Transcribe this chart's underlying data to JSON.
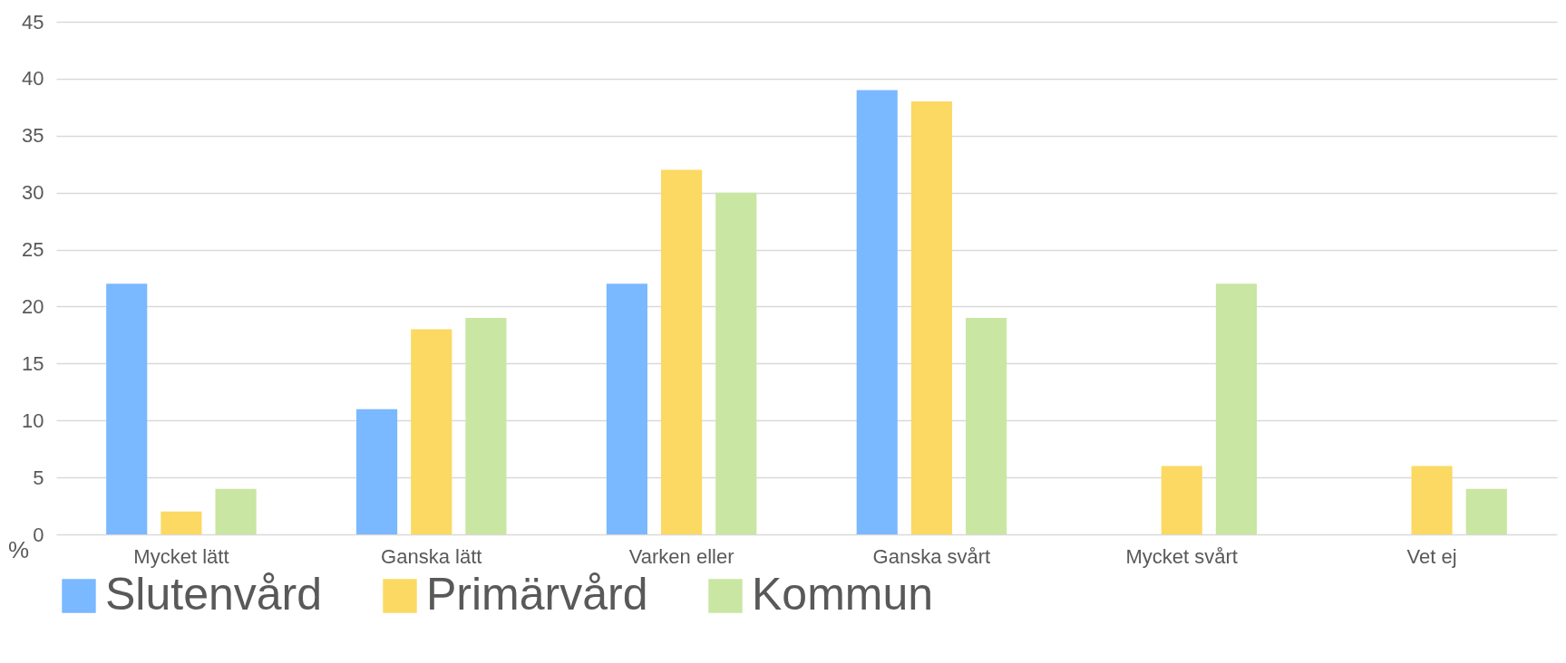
{
  "chart_data": {
    "type": "bar",
    "ylabel": "%",
    "categories": [
      "Mycket lätt",
      "Ganska lätt",
      "Varken eller",
      "Ganska svårt",
      "Mycket svårt",
      "Vet ej"
    ],
    "series": [
      {
        "name": "Slutenvård",
        "color": "#7ab8ff",
        "values": [
          22,
          11,
          22,
          39,
          0,
          0
        ]
      },
      {
        "name": "Primärvård",
        "color": "#fbd962",
        "values": [
          2,
          18,
          32,
          38,
          6,
          6
        ]
      },
      {
        "name": "Kommun",
        "color": "#c9e6a2",
        "values": [
          4,
          19,
          30,
          19,
          22,
          4
        ]
      }
    ],
    "ylim": [
      0,
      45
    ],
    "yticks": [
      0,
      5,
      10,
      15,
      20,
      25,
      30,
      35,
      40,
      45
    ],
    "grid": "y",
    "legend": "bottom"
  }
}
